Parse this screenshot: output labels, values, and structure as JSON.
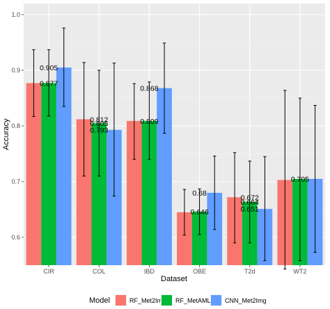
{
  "chart_data": {
    "type": "bar",
    "xlabel": "Dataset",
    "ylabel": "Accuracy",
    "ylim": [
      0.55,
      1.02
    ],
    "yticks": [
      "0.6",
      "0.7",
      "0.8",
      "0.9",
      "1.0"
    ],
    "categories": [
      "CIR",
      "COL",
      "IBD",
      "OBE",
      "T2d",
      "WT2"
    ],
    "grid": true,
    "legend_position": "bottom",
    "legend_title": "Model",
    "series": [
      {
        "name": "RF_Met2Img",
        "color": "#F8766D",
        "values": [
          0.877,
          0.812,
          0.809,
          0.645,
          0.672,
          0.703
        ],
        "err_low": [
          0.817,
          0.71,
          0.74,
          0.604,
          0.59,
          0.543
        ],
        "err_high": [
          0.937,
          0.914,
          0.876,
          0.686,
          0.752,
          0.864
        ],
        "labels": [
          "",
          "0.812",
          "",
          "",
          "0.672",
          ""
        ]
      },
      {
        "name": "RF_MetAML",
        "color": "#00BA38",
        "values": [
          0.877,
          0.805,
          0.809,
          0.646,
          0.664,
          0.705
        ],
        "err_low": [
          0.818,
          0.71,
          0.74,
          0.605,
          0.59,
          0.558
        ],
        "err_high": [
          0.937,
          0.9,
          0.879,
          0.687,
          0.737,
          0.85
        ],
        "labels": [
          "0.877",
          "0.805",
          "0.809",
          "0.646",
          "0.664",
          "0.705"
        ]
      },
      {
        "name": "CNN_Met2Img",
        "color": "#619CFF",
        "values": [
          0.905,
          0.793,
          0.868,
          0.68,
          0.651,
          0.705
        ],
        "err_low": [
          0.835,
          0.674,
          0.787,
          0.614,
          0.558,
          0.573
        ],
        "err_high": [
          0.976,
          0.913,
          0.949,
          0.746,
          0.745,
          0.837
        ],
        "labels": [
          "0.905",
          "0.793",
          "0.868",
          "0.68",
          "0.651",
          ""
        ]
      }
    ]
  }
}
